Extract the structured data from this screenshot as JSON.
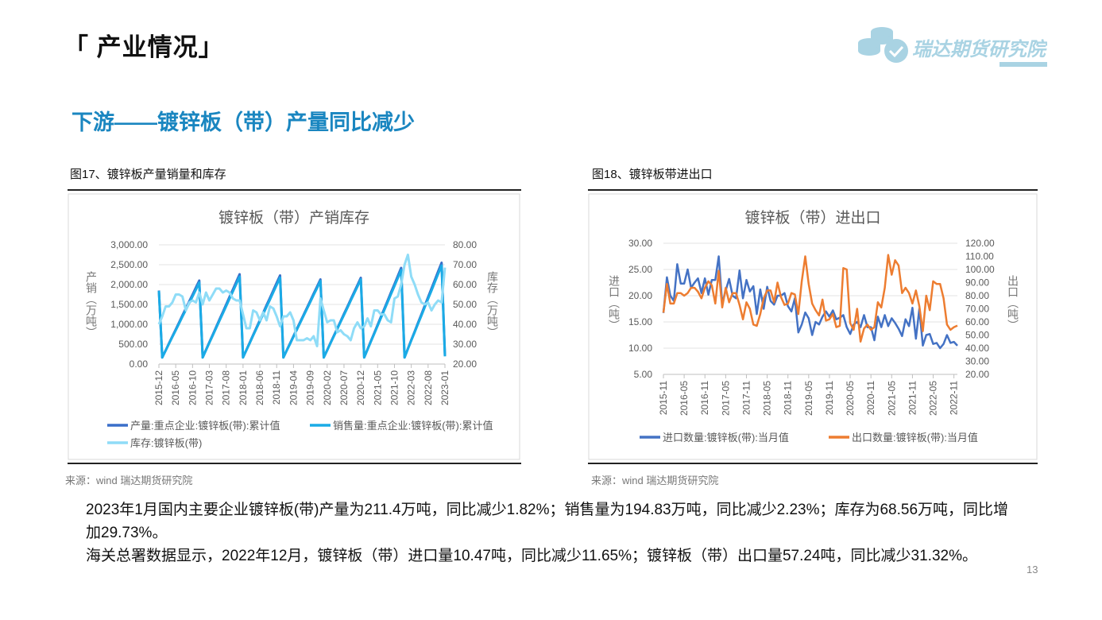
{
  "header": {
    "section_title": "「 产业情况」",
    "logo_text": "瑞达期货研究院"
  },
  "headline": "下游——镀锌板（带）产量同比减少",
  "figures": [
    {
      "caption": "图17、镀锌板产量销量和库存",
      "source": "来源：wind   瑞达期货研究院"
    },
    {
      "caption": "图18、镀锌板带进出口",
      "source": "来源：wind   瑞达期货研究院"
    }
  ],
  "body": {
    "paragraphs": [
      "2023年1月国内主要企业镀锌板(带)产量为211.4万吨，同比减少1.82%；销售量为194.83万吨，同比减少2.23%；库存为68.56万吨，同比增加29.73%。",
      "海关总署数据显示，2022年12月，镀锌板（带）进口量10.47吨，同比减少11.65%；镀锌板（带）出口量57.24吨，同比减少31.32%。"
    ]
  },
  "page_number": "13",
  "chart_data": [
    {
      "type": "line",
      "title": "镀锌板（带）产销库存",
      "ylabel": "产销（万吨）",
      "y2label": "库存（万吨）",
      "ylim": [
        0,
        3000
      ],
      "y2lim": [
        20,
        80
      ],
      "yticks": [
        "0.00",
        "500.00",
        "1,000.00",
        "1,500.00",
        "2,000.00",
        "2,500.00",
        "3,000.00"
      ],
      "y2ticks": [
        "20.00",
        "30.00",
        "40.00",
        "50.00",
        "60.00",
        "70.00",
        "80.00"
      ],
      "xtick_labels": [
        "2015-12",
        "2016-05",
        "2016-10",
        "2017-03",
        "2017-08",
        "2018-01",
        "2018-06",
        "2018-11",
        "2019-04",
        "2019-09",
        "2020-02",
        "2020-07",
        "2020-12",
        "2021-05",
        "2021-10",
        "2022-03",
        "2022-08",
        "2023-01"
      ],
      "xtick_every": 5,
      "grid": true,
      "legend": "bottom",
      "series": [
        {
          "name": "产量:重点企业:镀锌板(带):累计值",
          "color": "#3a6fc9",
          "axis": "left",
          "width": 3,
          "values": [
            1850,
            170,
            345,
            521,
            696,
            872,
            1047,
            1223,
            1398,
            1574,
            1749,
            1925,
            2100,
            170,
            360,
            550,
            740,
            930,
            1120,
            1310,
            1500,
            1690,
            1880,
            2070,
            2260,
            170,
            357,
            545,
            732,
            919,
            1106,
            1294,
            1481,
            1668,
            1855,
            2043,
            2230,
            170,
            348,
            526,
            705,
            883,
            1061,
            1239,
            1417,
            1596,
            1774,
            1952,
            2130,
            170,
            352,
            534,
            715,
            897,
            1079,
            1261,
            1443,
            1625,
            1806,
            1988,
            2170,
            170,
            375,
            579,
            784,
            988,
            1193,
            1398,
            1602,
            1807,
            2011,
            2216,
            2420,
            170,
            386,
            603,
            819,
            1036,
            1252,
            1468,
            1685,
            1901,
            2117,
            2334,
            2550,
            211.4
          ]
        },
        {
          "name": "销售量:重点企业:镀锌板(带):累计值",
          "color": "#1aabe6",
          "axis": "left",
          "width": 3,
          "values": [
            1840,
            165,
            340,
            510,
            680,
            850,
            1020,
            1195,
            1365,
            1535,
            1705,
            1875,
            2050,
            165,
            350,
            535,
            720,
            905,
            1090,
            1275,
            1460,
            1645,
            1830,
            2015,
            2200,
            165,
            348,
            530,
            713,
            895,
            1078,
            1260,
            1443,
            1625,
            1808,
            1990,
            2175,
            165,
            340,
            515,
            690,
            865,
            1040,
            1215,
            1390,
            1565,
            1740,
            1915,
            2090,
            165,
            345,
            525,
            700,
            880,
            1060,
            1235,
            1415,
            1595,
            1770,
            1950,
            2130,
            165,
            365,
            565,
            765,
            965,
            1165,
            1365,
            1565,
            1765,
            1965,
            2165,
            2365,
            165,
            380,
            590,
            800,
            1010,
            1220,
            1430,
            1640,
            1850,
            2060,
            2270,
            2480,
            194.83
          ]
        },
        {
          "name": "库存:镀锌板(带)",
          "color": "#8fdcf7",
          "axis": "right",
          "width": 3,
          "values": [
            40,
            44,
            49,
            49,
            51,
            55,
            55,
            54,
            47,
            51,
            52,
            51,
            56,
            50,
            56,
            52,
            55,
            58,
            58,
            56,
            57,
            56,
            53,
            52,
            52,
            45,
            38,
            38,
            47,
            46,
            42,
            46,
            42,
            49,
            48,
            44,
            39,
            44,
            44,
            46,
            42,
            32,
            32,
            32,
            33,
            32,
            34,
            29,
            53,
            47,
            41,
            42,
            42,
            36,
            37,
            35,
            34,
            32,
            38,
            41,
            38,
            39,
            43,
            39,
            47,
            47,
            45,
            45,
            42,
            41,
            53,
            54,
            60,
            70,
            75,
            64,
            60,
            55,
            51,
            50,
            51,
            47,
            50,
            52,
            51,
            68.56
          ]
        }
      ]
    },
    {
      "type": "line",
      "title": "镀锌板（带）进出口",
      "ylabel": "进口（吨）",
      "y2label": "出口（吨）",
      "ylim": [
        5,
        30
      ],
      "y2lim": [
        20,
        120
      ],
      "yticks": [
        "5.00",
        "10.00",
        "15.00",
        "20.00",
        "25.00",
        "30.00"
      ],
      "y2ticks": [
        "20.00",
        "30.00",
        "40.00",
        "50.00",
        "60.00",
        "70.00",
        "80.00",
        "90.00",
        "100.00",
        "110.00",
        "120.00"
      ],
      "xtick_labels": [
        "2015-11",
        "2016-05",
        "2016-11",
        "2017-05",
        "2017-11",
        "2018-05",
        "2018-11",
        "2019-05",
        "2019-11",
        "2020-05",
        "2020-11",
        "2021-05",
        "2021-11",
        "2022-05",
        "2022-11"
      ],
      "xtick_every": 6,
      "grid": true,
      "legend": "bottom",
      "series": [
        {
          "name": "进口数量:镀锌板(带):当月值",
          "color": "#4472c4",
          "axis": "left",
          "width": 2.5,
          "values": [
            16.7,
            23.5,
            20,
            19,
            26,
            22.3,
            22.3,
            25,
            21.5,
            22.5,
            23.3,
            20.5,
            23.3,
            20.2,
            23,
            23,
            27.5,
            18.5,
            21,
            23.2,
            20,
            19.5,
            24.8,
            19.5,
            23,
            20.8,
            21.8,
            16.5,
            21.2,
            17.5,
            21.7,
            19,
            18.3,
            20,
            20,
            20.5,
            18,
            17,
            19.5,
            13,
            14.5,
            16.8,
            15.7,
            12.5,
            15,
            14.5,
            16,
            17,
            16,
            17.2,
            15.5,
            15.8,
            16.3,
            14,
            12.7,
            14.5,
            15,
            14,
            16.3,
            14,
            14,
            11.5,
            16,
            14,
            16.3,
            14.2,
            15.7,
            14.8,
            13.7,
            12.3,
            15.5,
            14.2,
            17.7,
            11.8,
            17.5,
            10.5,
            12.5,
            12.7,
            10.8,
            11,
            10,
            10.8,
            12.5,
            11,
            11.2,
            10.47
          ]
        },
        {
          "name": "出口数量:镀锌板(带):当月值",
          "color": "#ed7d31",
          "axis": "right",
          "width": 2.5,
          "values": [
            67,
            89,
            74,
            74,
            82,
            82,
            80,
            82,
            86,
            86,
            83,
            78,
            86,
            91,
            88,
            74,
            99,
            71,
            86,
            75,
            82,
            82,
            73,
            62,
            75,
            70,
            58,
            57,
            66,
            78,
            84,
            84,
            75,
            90,
            79,
            73,
            74,
            82,
            81,
            66,
            91,
            110,
            89,
            74,
            69,
            65,
            77,
            61,
            62,
            66,
            56,
            57,
            101,
            100,
            59,
            54,
            70,
            45,
            55,
            58,
            54,
            56,
            75,
            71,
            86,
            111,
            96,
            107,
            103,
            82,
            86,
            82,
            74,
            84,
            72,
            53,
            80,
            69,
            91,
            89,
            89,
            78,
            58,
            54,
            56,
            57.24
          ]
        }
      ]
    }
  ]
}
